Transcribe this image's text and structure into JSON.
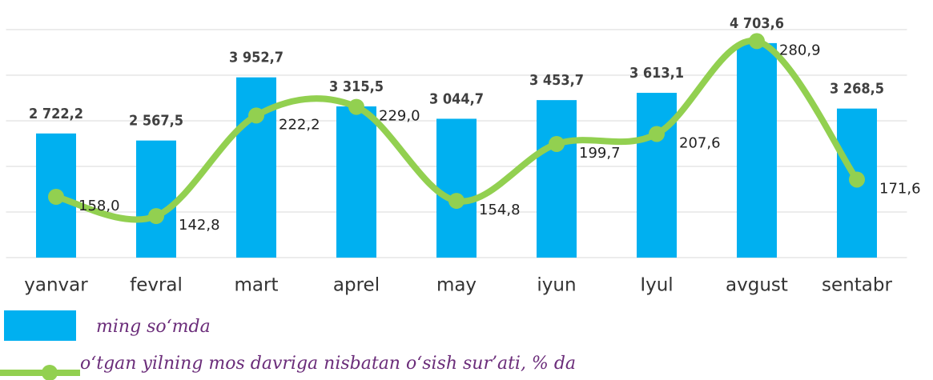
{
  "chart_data": {
    "type": "bar",
    "categories": [
      "yanvar",
      "fevral",
      "mart",
      "aprel",
      "may",
      "iyun",
      "Iyul",
      "avgust",
      "sentabr"
    ],
    "series": [
      {
        "name": "ming so‘mda",
        "type": "bar",
        "color": "#00b0f0",
        "values": [
          2722.2,
          2567.5,
          3952.7,
          3315.5,
          3044.7,
          3453.7,
          3613.1,
          4703.6,
          3268.5
        ],
        "value_labels": [
          "2 722,2",
          "2 567,5",
          "3 952,7",
          "3 315,5",
          "3 044,7",
          "3 453,7",
          "3 613,1",
          "4 703,6",
          "3 268,5"
        ]
      },
      {
        "name": "o‘tgan yilning mos davriga nisbatan o‘sish sur’ati, % da",
        "type": "line",
        "axis": "y2",
        "color": "#92d050",
        "values": [
          158.0,
          142.8,
          222.2,
          229.0,
          154.8,
          199.7,
          207.6,
          280.9,
          171.6
        ],
        "value_labels": [
          "158,0",
          "142,8",
          "222,2",
          "229,0",
          "154,8",
          "199,7",
          "207,6",
          "280,9",
          "171,6"
        ]
      }
    ],
    "ylim": [
      0,
      5000
    ],
    "yticks": [
      0,
      1000,
      2000,
      3000,
      4000,
      5000
    ],
    "y2lim": [
      110,
      290
    ],
    "grid": true
  }
}
